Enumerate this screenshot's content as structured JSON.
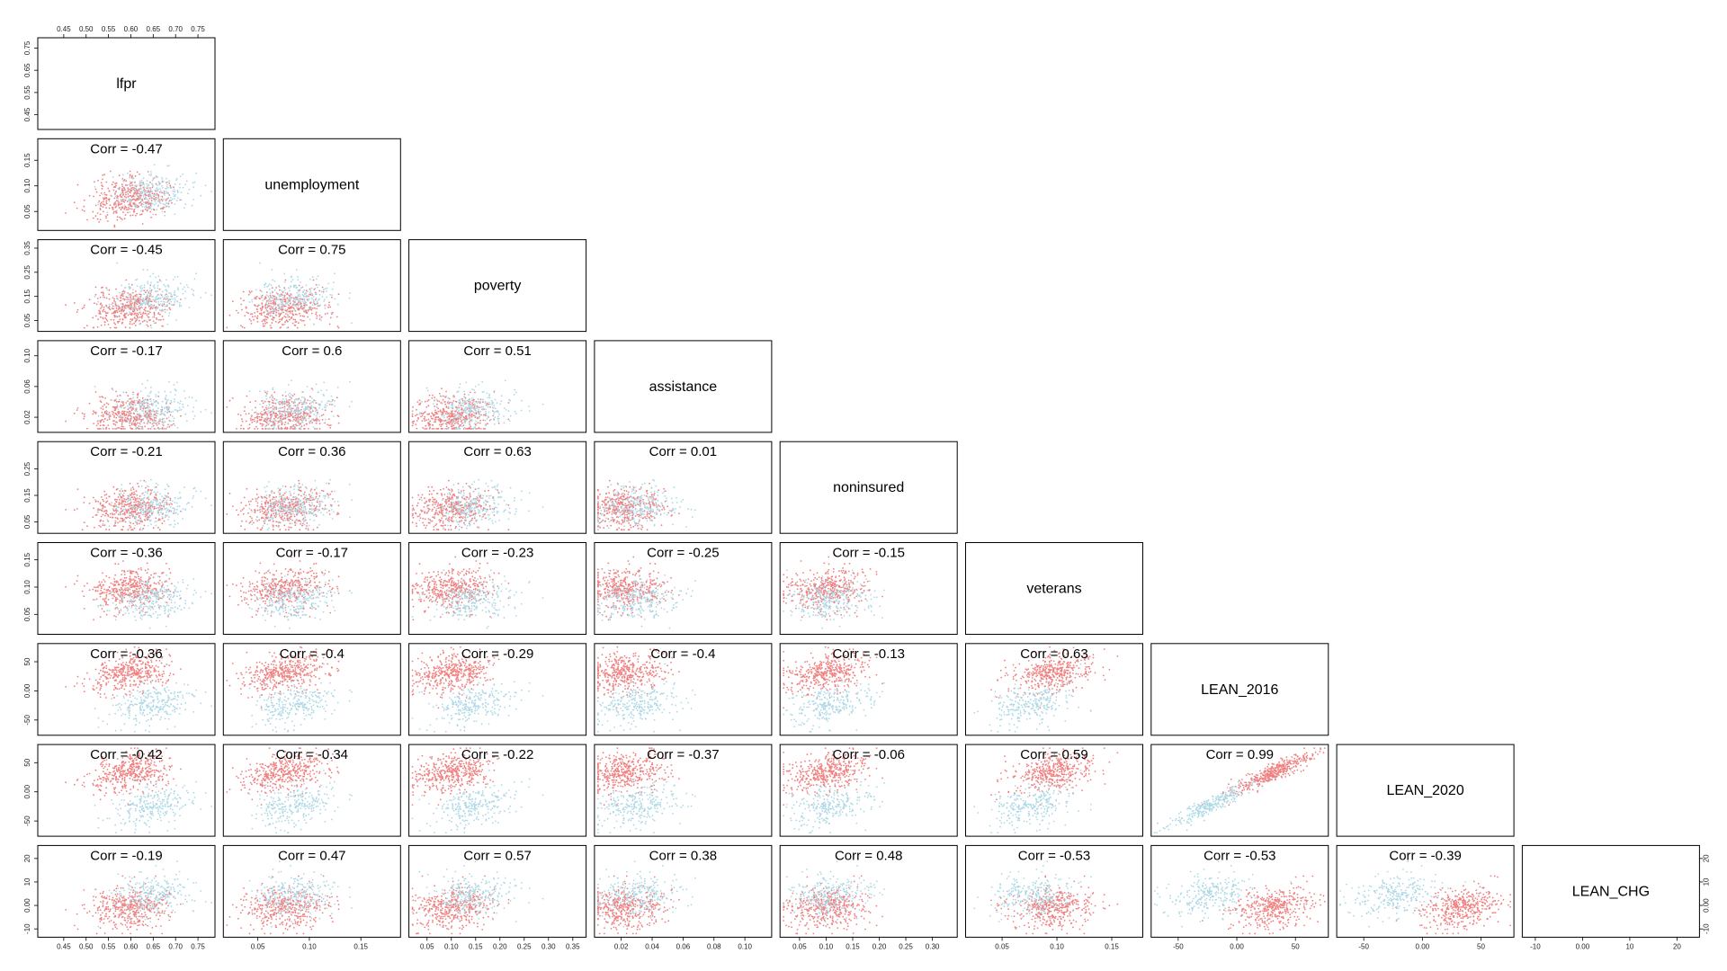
{
  "chart_data": {
    "type": "scatter",
    "layout": "lower-triangular-pairs-matrix",
    "variables": [
      {
        "name": "lfpr",
        "range": [
          0.4,
          0.78
        ],
        "ticks": [
          0.45,
          0.5,
          0.55,
          0.6,
          0.65,
          0.7,
          0.75
        ]
      },
      {
        "name": "unemployment",
        "range": [
          0.02,
          0.185
        ],
        "ticks": [
          0.05,
          0.1,
          0.15
        ]
      },
      {
        "name": "poverty",
        "range": [
          0.02,
          0.37
        ],
        "ticks": [
          0.05,
          0.1,
          0.15,
          0.2,
          0.25,
          0.3,
          0.35
        ]
      },
      {
        "name": "assistance",
        "range": [
          0.005,
          0.115
        ],
        "ticks": [
          0.02,
          0.04,
          0.06,
          0.08,
          0.1
        ]
      },
      {
        "name": "noninsured",
        "range": [
          0.02,
          0.34
        ],
        "ticks": [
          0.05,
          0.1,
          0.15,
          0.2,
          0.25,
          0.3
        ]
      },
      {
        "name": "veterans",
        "range": [
          0.02,
          0.175
        ],
        "ticks": [
          0.05,
          0.1,
          0.15
        ]
      },
      {
        "name": "LEAN_2016",
        "range": [
          -70,
          75
        ],
        "ticks": [
          -50,
          0,
          50
        ]
      },
      {
        "name": "LEAN_2020",
        "range": [
          -70,
          75
        ],
        "ticks": [
          -50,
          0,
          50
        ]
      },
      {
        "name": "LEAN_CHG",
        "range": [
          -12,
          24
        ],
        "ticks": [
          -10,
          0,
          10,
          20
        ]
      }
    ],
    "left_axis_ticks": [
      {
        "row": 0,
        "ticks": [
          0.45,
          0.55,
          0.65,
          0.75
        ]
      },
      {
        "row": 1,
        "ticks": [
          0.05,
          0.1,
          0.15
        ]
      },
      {
        "row": 2,
        "ticks": [
          0.05,
          0.15,
          0.25,
          0.35
        ]
      },
      {
        "row": 3,
        "ticks": [
          0.02,
          0.06,
          0.1
        ]
      },
      {
        "row": 4,
        "ticks": [
          0.05,
          0.15,
          0.25
        ]
      },
      {
        "row": 5,
        "ticks": [
          0.05,
          0.1,
          0.15
        ]
      },
      {
        "row": 6,
        "ticks": [
          -50,
          0,
          50
        ]
      },
      {
        "row": 7,
        "ticks": [
          -50,
          0,
          50
        ]
      },
      {
        "row": 8,
        "ticks": [
          -10,
          0,
          10,
          20
        ]
      }
    ],
    "correlations": [
      {
        "row": 1,
        "col": 0,
        "label": "Corr = -0.47"
      },
      {
        "row": 2,
        "col": 0,
        "label": "Corr = -0.45"
      },
      {
        "row": 2,
        "col": 1,
        "label": "Corr = 0.75"
      },
      {
        "row": 3,
        "col": 0,
        "label": "Corr = -0.17"
      },
      {
        "row": 3,
        "col": 1,
        "label": "Corr = 0.6"
      },
      {
        "row": 3,
        "col": 2,
        "label": "Corr = 0.51"
      },
      {
        "row": 4,
        "col": 0,
        "label": "Corr = -0.21"
      },
      {
        "row": 4,
        "col": 1,
        "label": "Corr = 0.36"
      },
      {
        "row": 4,
        "col": 2,
        "label": "Corr = 0.63"
      },
      {
        "row": 4,
        "col": 3,
        "label": "Corr = 0.01"
      },
      {
        "row": 5,
        "col": 0,
        "label": "Corr = -0.36"
      },
      {
        "row": 5,
        "col": 1,
        "label": "Corr = -0.17"
      },
      {
        "row": 5,
        "col": 2,
        "label": "Corr = -0.23"
      },
      {
        "row": 5,
        "col": 3,
        "label": "Corr = -0.25"
      },
      {
        "row": 5,
        "col": 4,
        "label": "Corr = -0.15"
      },
      {
        "row": 6,
        "col": 0,
        "label": "Corr = -0.36"
      },
      {
        "row": 6,
        "col": 1,
        "label": "Corr = -0.4"
      },
      {
        "row": 6,
        "col": 2,
        "label": "Corr = -0.29"
      },
      {
        "row": 6,
        "col": 3,
        "label": "Corr = -0.4"
      },
      {
        "row": 6,
        "col": 4,
        "label": "Corr = -0.13"
      },
      {
        "row": 6,
        "col": 5,
        "label": "Corr = 0.63"
      },
      {
        "row": 7,
        "col": 0,
        "label": "Corr = -0.42"
      },
      {
        "row": 7,
        "col": 1,
        "label": "Corr = -0.34"
      },
      {
        "row": 7,
        "col": 2,
        "label": "Corr = -0.22"
      },
      {
        "row": 7,
        "col": 3,
        "label": "Corr = -0.37"
      },
      {
        "row": 7,
        "col": 4,
        "label": "Corr = -0.06"
      },
      {
        "row": 7,
        "col": 5,
        "label": "Corr = 0.59"
      },
      {
        "row": 7,
        "col": 6,
        "label": "Corr = 0.99"
      },
      {
        "row": 8,
        "col": 0,
        "label": "Corr = -0.19"
      },
      {
        "row": 8,
        "col": 1,
        "label": "Corr = 0.47"
      },
      {
        "row": 8,
        "col": 2,
        "label": "Corr = 0.57"
      },
      {
        "row": 8,
        "col": 3,
        "label": "Corr = 0.38"
      },
      {
        "row": 8,
        "col": 4,
        "label": "Corr = 0.48"
      },
      {
        "row": 8,
        "col": 5,
        "label": "Corr = -0.53"
      },
      {
        "row": 8,
        "col": 6,
        "label": "Corr = -0.53"
      },
      {
        "row": 8,
        "col": 7,
        "label": "Corr = -0.39"
      }
    ],
    "groups": [
      {
        "color": "#f08080"
      },
      {
        "color": "#add8e6"
      }
    ],
    "group_centers": {
      "lfpr": [
        0.6,
        0.65
      ],
      "unemployment": [
        0.075,
        0.085
      ],
      "poverty": [
        0.1,
        0.14
      ],
      "assistance": [
        0.022,
        0.03
      ],
      "noninsured": [
        0.1,
        0.11
      ],
      "veterans": [
        0.095,
        0.075
      ],
      "LEAN_2016": [
        30,
        -25
      ],
      "LEAN_2020": [
        33,
        -25
      ],
      "LEAN_CHG": [
        -1,
        4
      ]
    },
    "grid": false,
    "legend": "none"
  }
}
